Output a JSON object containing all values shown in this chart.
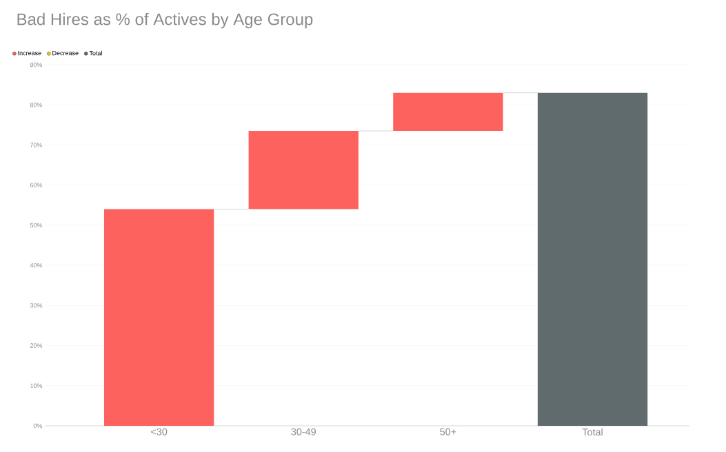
{
  "chart_data": {
    "type": "bar",
    "title": "Bad Hires as % of Actives by Age Group",
    "categories": [
      "<30",
      "30-49",
      "50+",
      "Total"
    ],
    "series": [
      {
        "name": "Increase",
        "color": "#fd625e",
        "values": [
          54,
          19.5,
          9.5,
          null
        ],
        "base": [
          0,
          54,
          73.5,
          null
        ]
      },
      {
        "name": "Decrease",
        "color": "#f2c80f",
        "values": [
          null,
          null,
          null,
          null
        ]
      },
      {
        "name": "Total",
        "color": "#5f6b6d",
        "values": [
          null,
          null,
          null,
          83
        ]
      }
    ],
    "ylim": [
      0,
      90
    ],
    "yticks": [
      {
        "value": 0,
        "label": "0%"
      },
      {
        "value": 10,
        "label": "10%"
      },
      {
        "value": 20,
        "label": "20%"
      },
      {
        "value": 30,
        "label": "30%"
      },
      {
        "value": 40,
        "label": "40%"
      },
      {
        "value": 50,
        "label": "50%"
      },
      {
        "value": 60,
        "label": "60%"
      },
      {
        "value": 70,
        "label": "70%"
      },
      {
        "value": 80,
        "label": "80%"
      },
      {
        "value": 90,
        "label": "90%"
      }
    ],
    "grid": "y",
    "legend": "top left"
  }
}
